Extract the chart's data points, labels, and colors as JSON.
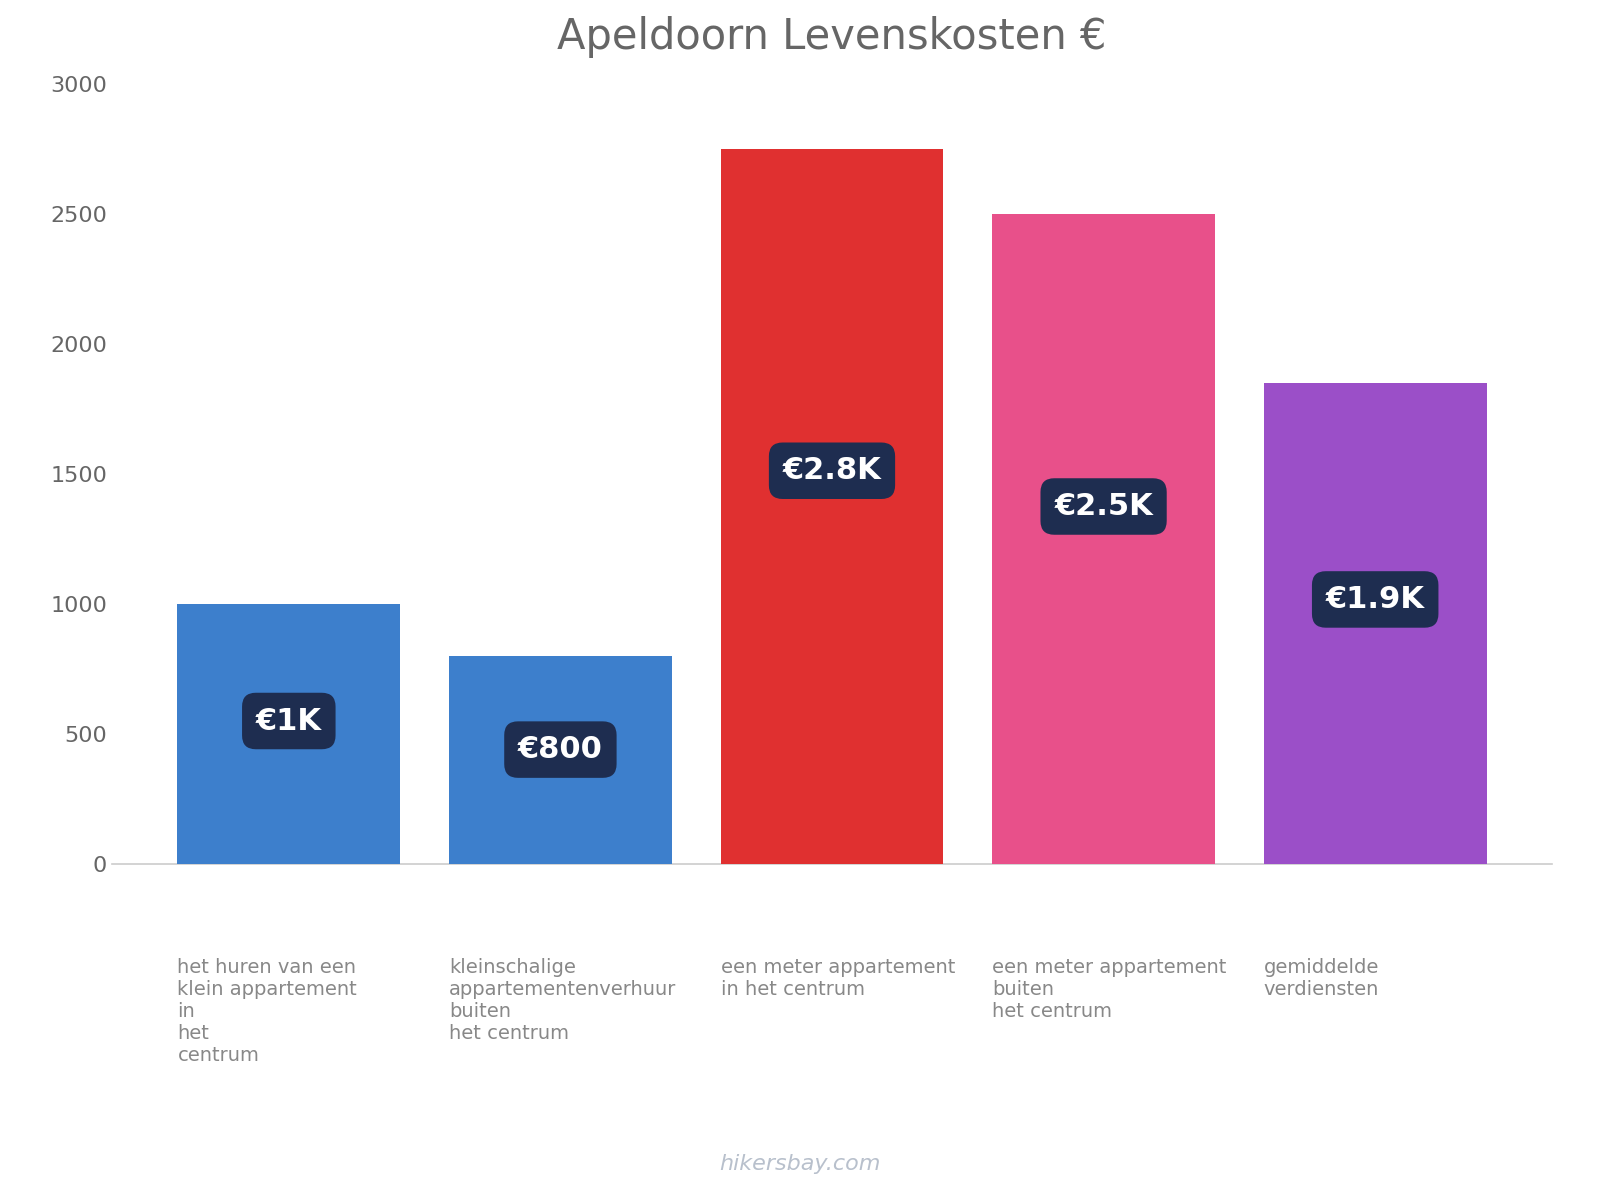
{
  "title": "Apeldoorn Levenskosten €",
  "categories": [
    "het huren van een\nklein appartement",
    "kleinschalige\nappartementenverhuur",
    "een meter appartement\nin het centrum",
    "een meter appartement\nbuiten",
    "gemiddelde\nverdiensten"
  ],
  "extra_labels": [
    "\nin\nhet\ncentrum",
    "\nbuiten\nhet centrum",
    "",
    "\nhet centrum",
    ""
  ],
  "values": [
    1000,
    800,
    2750,
    2500,
    1850
  ],
  "bar_colors": [
    "#3d7fcc",
    "#3d7fcc",
    "#e03030",
    "#e8508a",
    "#9b4fc8"
  ],
  "label_texts": [
    "€1K",
    "€800",
    "€2.8K",
    "€2.5K",
    "€1.9K"
  ],
  "label_box_color": "#1e2d50",
  "label_text_color": "#ffffff",
  "ylim": [
    0,
    3000
  ],
  "yticks": [
    0,
    500,
    1000,
    1500,
    2000,
    2500,
    3000
  ],
  "background_color": "#ffffff",
  "title_fontsize": 30,
  "tick_fontsize": 16,
  "label_fontsize": 22,
  "category_fontsize": 14,
  "watermark": "hikersbay.com",
  "watermark_color": "#b8c0cc",
  "bar_width": 0.82,
  "tick_color": "#888888",
  "spine_color": "#cccccc",
  "ytick_color": "#666666"
}
